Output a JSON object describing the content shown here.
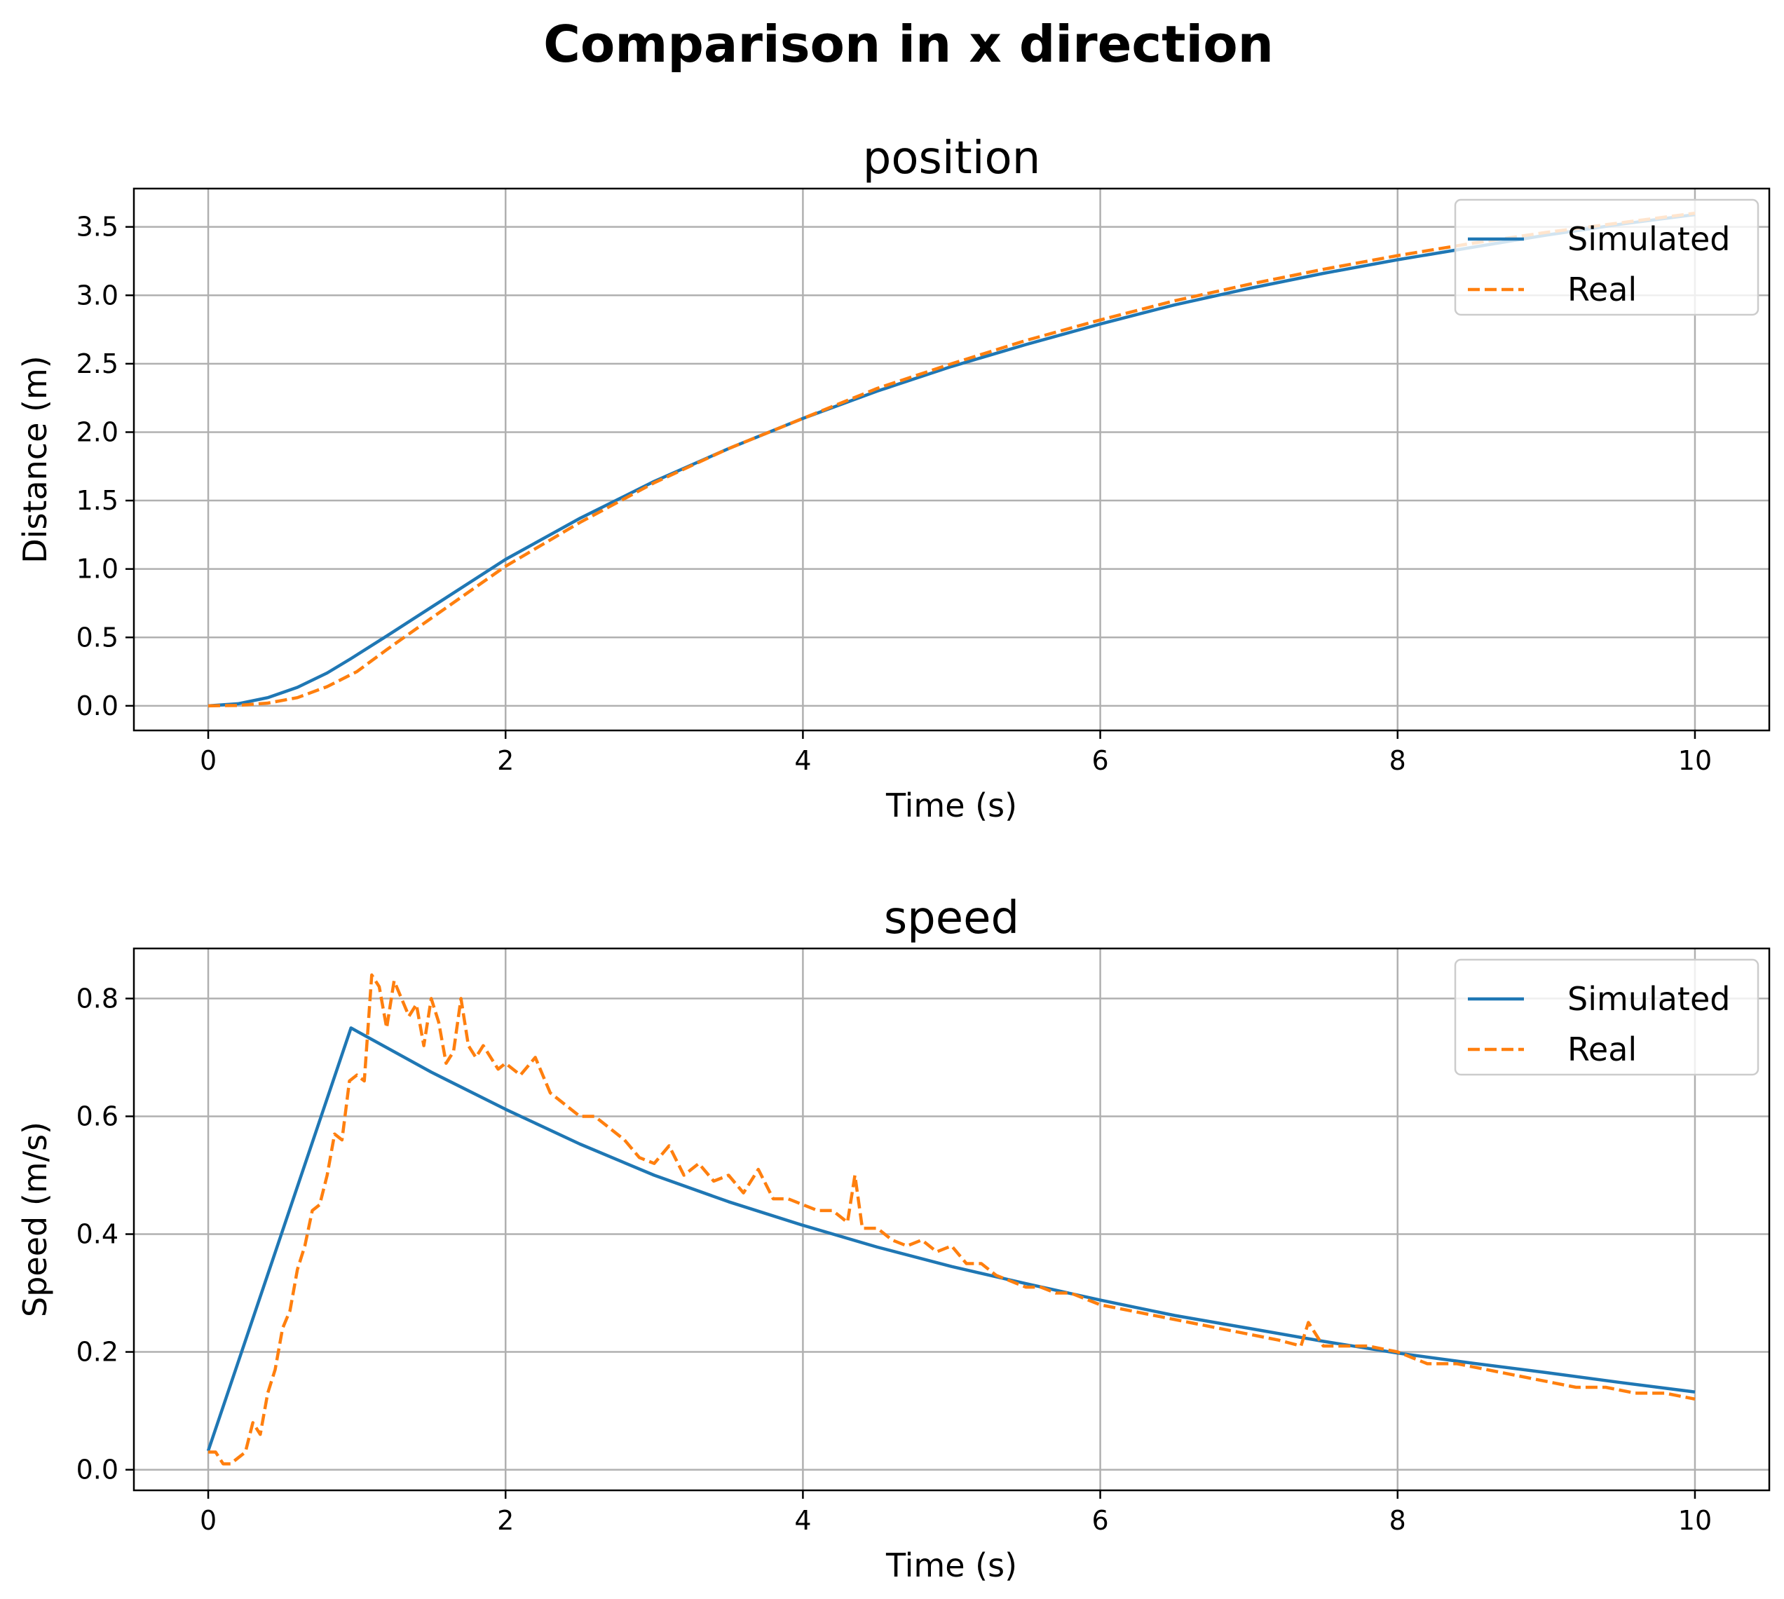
{
  "figure": {
    "title": "Comparison in x direction"
  },
  "colors": {
    "simulated": "#1f77b4",
    "real": "#ff7f0e"
  },
  "chart_data": [
    {
      "type": "line",
      "title": "position",
      "xlabel": "Time (s)",
      "ylabel": "Distance (m)",
      "xlim": [
        -0.5,
        10.5
      ],
      "ylim": [
        -0.18,
        3.78
      ],
      "xticks": [
        0,
        2,
        4,
        6,
        8,
        10
      ],
      "xtick_labels": [
        "0",
        "2",
        "4",
        "6",
        "8",
        "10"
      ],
      "yticks": [
        0.0,
        0.5,
        1.0,
        1.5,
        2.0,
        2.5,
        3.0,
        3.5
      ],
      "ytick_labels": [
        "0.0",
        "0.5",
        "1.0",
        "1.5",
        "2.0",
        "2.5",
        "3.0",
        "3.5"
      ],
      "grid": true,
      "legend_position": "upper right",
      "series": [
        {
          "name": "Simulated",
          "style": "solid",
          "x": [
            0,
            0.2,
            0.4,
            0.6,
            0.8,
            0.96,
            1.2,
            1.5,
            2.0,
            2.5,
            3.0,
            3.5,
            4.0,
            4.5,
            5.0,
            5.5,
            6.0,
            6.5,
            7.0,
            7.5,
            8.0,
            8.5,
            9.0,
            9.5,
            10.0
          ],
          "y": [
            0.0,
            0.015,
            0.06,
            0.135,
            0.24,
            0.345,
            0.51,
            0.72,
            1.07,
            1.37,
            1.64,
            1.88,
            2.1,
            2.3,
            2.48,
            2.64,
            2.79,
            2.93,
            3.05,
            3.16,
            3.26,
            3.35,
            3.44,
            3.52,
            3.59
          ]
        },
        {
          "name": "Real",
          "style": "dashed",
          "x": [
            0,
            0.2,
            0.4,
            0.6,
            0.8,
            1.0,
            1.2,
            1.5,
            2.0,
            2.5,
            3.0,
            3.5,
            4.0,
            4.5,
            5.0,
            5.5,
            6.0,
            6.5,
            7.0,
            7.5,
            8.0,
            8.5,
            9.0,
            9.5,
            10.0
          ],
          "y": [
            0.0,
            0.003,
            0.02,
            0.06,
            0.14,
            0.25,
            0.41,
            0.64,
            1.02,
            1.34,
            1.63,
            1.88,
            2.1,
            2.32,
            2.5,
            2.67,
            2.82,
            2.96,
            3.08,
            3.19,
            3.29,
            3.38,
            3.46,
            3.53,
            3.6
          ]
        }
      ]
    },
    {
      "type": "line",
      "title": "speed",
      "xlabel": "Time (s)",
      "ylabel": "Speed (m/s)",
      "xlim": [
        -0.5,
        10.5
      ],
      "ylim": [
        -0.035,
        0.885
      ],
      "xticks": [
        0,
        2,
        4,
        6,
        8,
        10
      ],
      "xtick_labels": [
        "0",
        "2",
        "4",
        "6",
        "8",
        "10"
      ],
      "yticks": [
        0.0,
        0.2,
        0.4,
        0.6,
        0.8
      ],
      "ytick_labels": [
        "0.0",
        "0.2",
        "0.4",
        "0.6",
        "0.8"
      ],
      "grid": true,
      "legend_position": "upper right",
      "series": [
        {
          "name": "Simulated",
          "style": "solid",
          "x": [
            0,
            0.96,
            1.5,
            2.0,
            2.5,
            3.0,
            3.5,
            4.0,
            4.5,
            5.0,
            5.5,
            6.0,
            6.5,
            7.0,
            7.5,
            8.0,
            8.5,
            9.0,
            9.5,
            10.0
          ],
          "y": [
            0.032,
            0.75,
            0.675,
            0.612,
            0.553,
            0.5,
            0.455,
            0.415,
            0.378,
            0.345,
            0.316,
            0.288,
            0.262,
            0.24,
            0.218,
            0.198,
            0.181,
            0.165,
            0.148,
            0.132
          ]
        },
        {
          "name": "Real",
          "style": "dashed",
          "x": [
            0,
            0.05,
            0.1,
            0.15,
            0.2,
            0.25,
            0.3,
            0.35,
            0.4,
            0.45,
            0.5,
            0.55,
            0.6,
            0.65,
            0.7,
            0.75,
            0.8,
            0.85,
            0.9,
            0.95,
            1.0,
            1.05,
            1.1,
            1.15,
            1.2,
            1.25,
            1.3,
            1.35,
            1.4,
            1.45,
            1.5,
            1.55,
            1.6,
            1.65,
            1.7,
            1.75,
            1.8,
            1.85,
            1.9,
            1.95,
            2.0,
            2.1,
            2.2,
            2.3,
            2.4,
            2.5,
            2.6,
            2.7,
            2.8,
            2.9,
            3.0,
            3.1,
            3.2,
            3.3,
            3.4,
            3.5,
            3.6,
            3.7,
            3.8,
            3.9,
            4.0,
            4.1,
            4.2,
            4.3,
            4.35,
            4.4,
            4.5,
            4.6,
            4.7,
            4.8,
            4.9,
            5.0,
            5.1,
            5.2,
            5.3,
            5.4,
            5.5,
            5.6,
            5.7,
            5.8,
            5.9,
            6.0,
            6.2,
            6.4,
            6.6,
            6.8,
            7.0,
            7.2,
            7.35,
            7.4,
            7.5,
            7.6,
            7.8,
            8.0,
            8.2,
            8.4,
            8.6,
            8.8,
            9.0,
            9.2,
            9.4,
            9.6,
            9.8,
            10.0
          ],
          "y": [
            0.03,
            0.03,
            0.01,
            0.01,
            0.02,
            0.03,
            0.08,
            0.06,
            0.13,
            0.17,
            0.24,
            0.27,
            0.34,
            0.38,
            0.44,
            0.45,
            0.5,
            0.57,
            0.56,
            0.66,
            0.67,
            0.66,
            0.84,
            0.82,
            0.75,
            0.83,
            0.8,
            0.77,
            0.79,
            0.72,
            0.8,
            0.76,
            0.69,
            0.71,
            0.8,
            0.72,
            0.7,
            0.72,
            0.7,
            0.68,
            0.69,
            0.67,
            0.7,
            0.64,
            0.62,
            0.6,
            0.6,
            0.58,
            0.56,
            0.53,
            0.52,
            0.55,
            0.5,
            0.52,
            0.49,
            0.5,
            0.47,
            0.51,
            0.46,
            0.46,
            0.45,
            0.44,
            0.44,
            0.42,
            0.5,
            0.41,
            0.41,
            0.39,
            0.38,
            0.39,
            0.37,
            0.38,
            0.35,
            0.35,
            0.33,
            0.32,
            0.31,
            0.31,
            0.3,
            0.3,
            0.29,
            0.28,
            0.27,
            0.26,
            0.25,
            0.24,
            0.23,
            0.22,
            0.21,
            0.25,
            0.21,
            0.21,
            0.21,
            0.2,
            0.18,
            0.18,
            0.17,
            0.16,
            0.15,
            0.14,
            0.14,
            0.13,
            0.13,
            0.12
          ]
        }
      ]
    }
  ]
}
